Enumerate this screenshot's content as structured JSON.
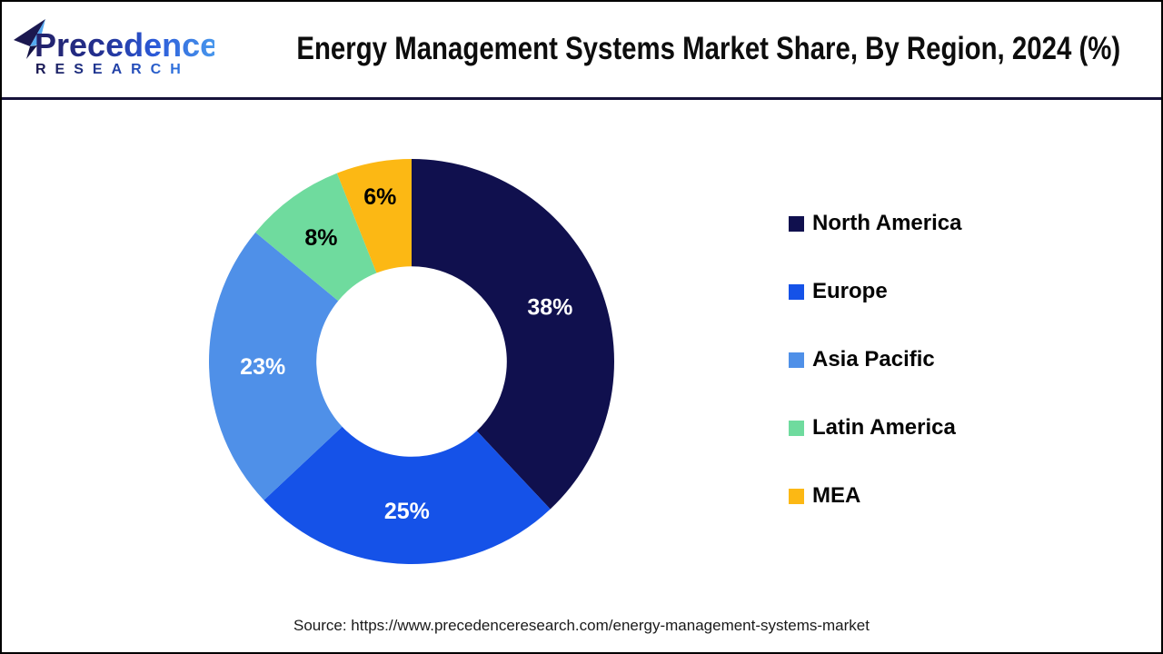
{
  "header": {
    "brand": "Precedence",
    "brand_sub": "RESEARCH",
    "title": "Energy Management Systems Market Share, By Region, 2024 (%)"
  },
  "chart_data": {
    "type": "pie",
    "subtype": "donut",
    "title": "Energy Management Systems Market Share, By Region, 2024 (%)",
    "labels": [
      "North America",
      "Europe",
      "Asia Pacific",
      "Latin America",
      "MEA"
    ],
    "values": [
      38,
      25,
      23,
      8,
      6
    ],
    "unit": "%",
    "data_label_texts": [
      "38%",
      "25%",
      "23%",
      "8%",
      "6%"
    ],
    "data_label_colors": [
      "#ffffff",
      "#ffffff",
      "#ffffff",
      "#000000",
      "#000000"
    ],
    "colors": [
      "#10104e",
      "#1552e8",
      "#4f90e8",
      "#6fdb9e",
      "#fcb814"
    ],
    "start_angle_deg": 0,
    "direction": "clockwise",
    "legend_position": "right",
    "inner_radius_ratio": 0.47,
    "label_radius_ratios": [
      0.735,
      0.735,
      0.735,
      0.76,
      0.83
    ]
  },
  "footer": {
    "source": "Source: https://www.precedenceresearch.com/energy-management-systems-market"
  },
  "logo_colors": {
    "navy": "#1b1850",
    "mid_blue": "#2b59d8",
    "light_blue": "#4a9bee",
    "accent": "#55aaf0"
  }
}
